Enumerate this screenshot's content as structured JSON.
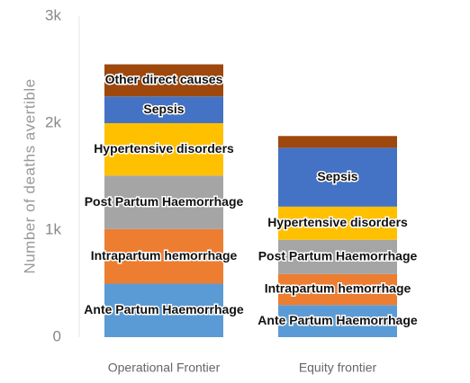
{
  "chart_data": {
    "type": "stacked_bar",
    "y_label": "Number of deaths avertible",
    "categories": [
      "Operational Frontier",
      "Equity frontier"
    ],
    "series": [
      {
        "name": "Ante Partum Haemorrhage",
        "color": "#5b9bd5",
        "values": [
          500,
          300
        ]
      },
      {
        "name": "Intrapartum hemorrhage",
        "color": "#ed7d31",
        "values": [
          510,
          290
        ]
      },
      {
        "name": "Post Partum Haemorrhage",
        "color": "#a5a5a5",
        "values": [
          500,
          320
        ]
      },
      {
        "name": "Hypertensive disorders",
        "color": "#ffc000",
        "values": [
          490,
          310
        ]
      },
      {
        "name": "Sepsis",
        "color": "#4472c4",
        "values": [
          250,
          550
        ]
      },
      {
        "name": "Other direct causes",
        "color": "#9e480e",
        "values": [
          300,
          110
        ]
      }
    ],
    "ylim": [
      0,
      3000
    ],
    "yticks": [
      0,
      {
        "value": 1000,
        "label": "1k"
      },
      {
        "value": 2000,
        "label": "2k"
      },
      {
        "value": 3000,
        "label": "3k"
      }
    ]
  }
}
